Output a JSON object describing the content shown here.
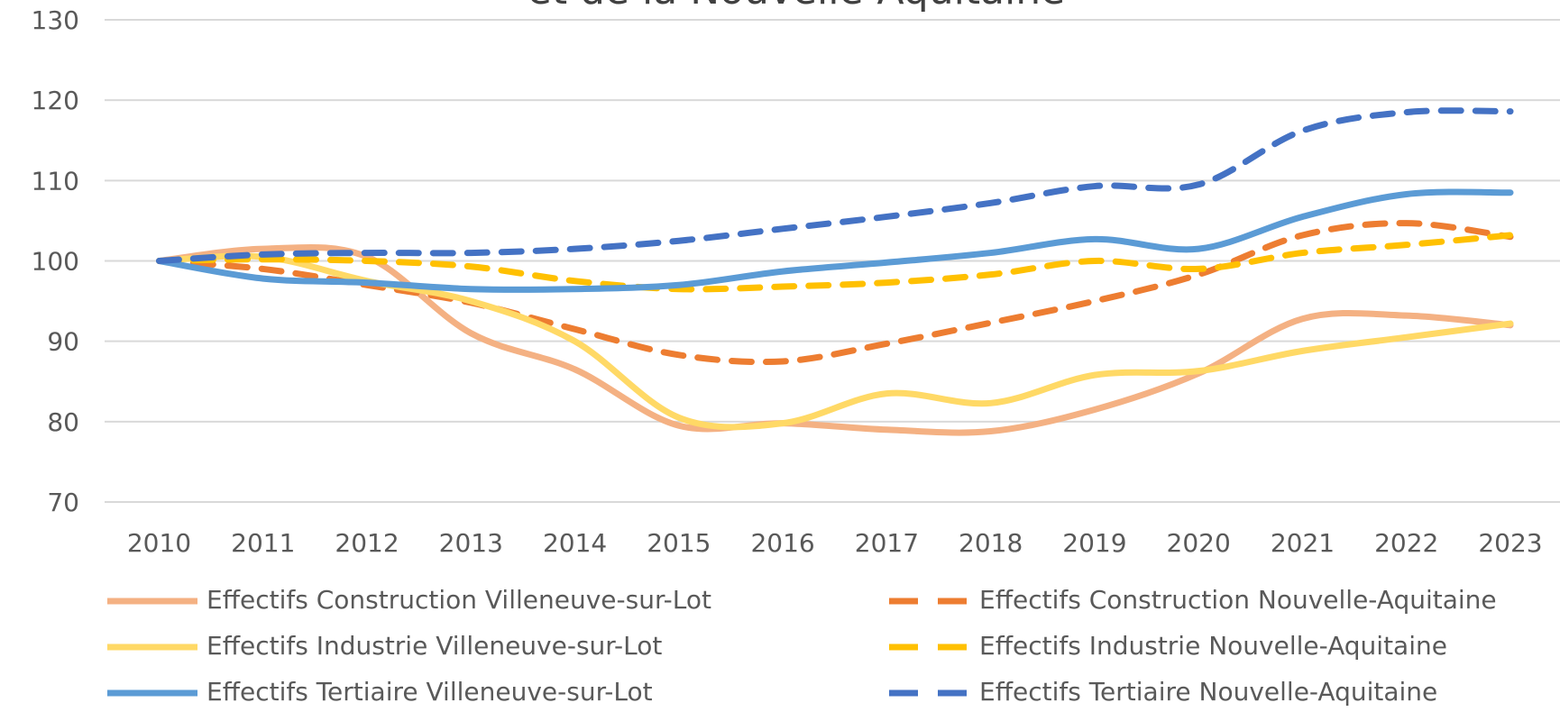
{
  "chart_data": {
    "type": "line",
    "title": "et de la Nouvelle-Aquitaine",
    "categories": [
      "2010",
      "2011",
      "2012",
      "2013",
      "2014",
      "2015",
      "2016",
      "2017",
      "2018",
      "2019",
      "2020",
      "2021",
      "2022",
      "2023"
    ],
    "ylim": [
      70,
      130
    ],
    "yticks": [
      70,
      80,
      90,
      100,
      110,
      120,
      130
    ],
    "grid": true,
    "smooth": true,
    "legend": "bottom",
    "series": [
      {
        "name": "Effectifs Construction Villeneuve-sur-Lot",
        "color": "#f4b183",
        "dashed": false,
        "values": [
          100,
          101.5,
          100.5,
          91,
          86.5,
          79.5,
          79.8,
          79,
          78.8,
          81.5,
          86,
          92.8,
          93.2,
          92
        ]
      },
      {
        "name": "Effectifs Construction Nouvelle-Aquitaine",
        "color": "#ed7d31",
        "dashed": true,
        "values": [
          100,
          99,
          97,
          94.8,
          91.5,
          88.3,
          87.5,
          89.7,
          92.3,
          95,
          98.3,
          103.2,
          104.7,
          103
        ]
      },
      {
        "name": "Effectifs Industrie Villeneuve-sur-Lot",
        "color": "#ffd966",
        "dashed": false,
        "values": [
          100,
          100.5,
          97.5,
          95,
          90,
          80.5,
          79.8,
          83.5,
          82.3,
          85.8,
          86.3,
          88.8,
          90.5,
          92.2
        ]
      },
      {
        "name": "Effectifs Industrie Nouvelle-Aquitaine",
        "color": "#ffc000",
        "dashed": true,
        "values": [
          100,
          100.2,
          100,
          99.3,
          97.5,
          96.5,
          96.8,
          97.3,
          98.3,
          100,
          99,
          101,
          102,
          103.2
        ]
      },
      {
        "name": "Effectifs Tertiaire Villeneuve-sur-Lot",
        "color": "#5b9bd5",
        "dashed": false,
        "values": [
          100,
          97.8,
          97.3,
          96.5,
          96.5,
          97,
          98.7,
          99.8,
          101,
          102.7,
          101.5,
          105.5,
          108.3,
          108.5
        ]
      },
      {
        "name": "Effectifs Tertiaire Nouvelle-Aquitaine",
        "color": "#4472c4",
        "dashed": true,
        "values": [
          100,
          100.8,
          101,
          101,
          101.5,
          102.5,
          104,
          105.5,
          107.2,
          109.3,
          109.5,
          116.2,
          118.5,
          118.6
        ]
      }
    ]
  }
}
